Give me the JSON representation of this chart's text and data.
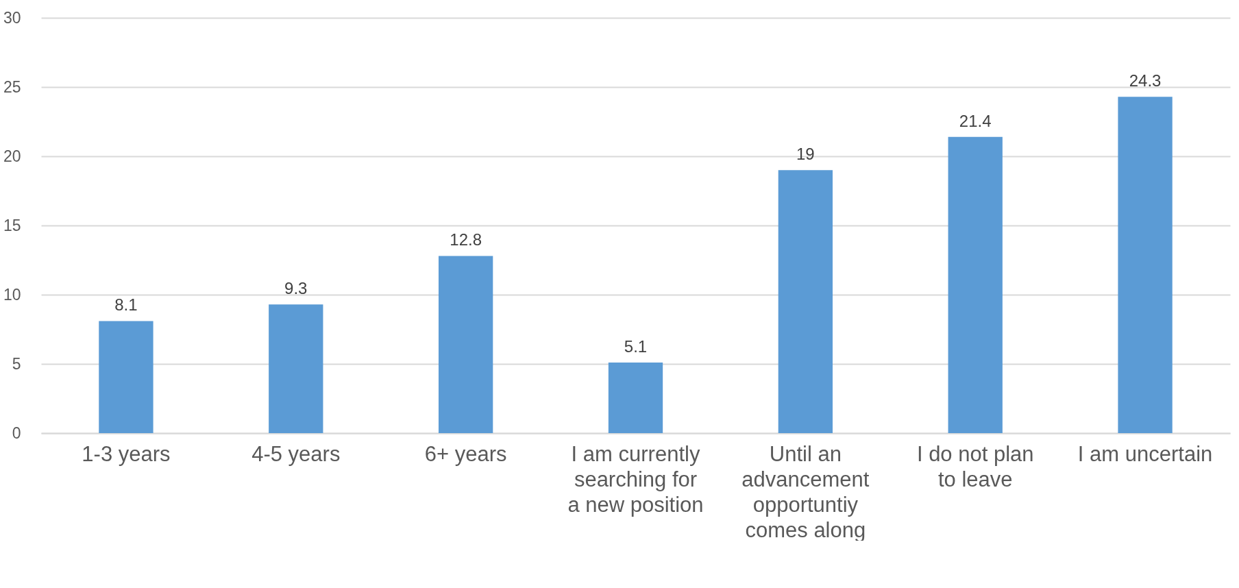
{
  "chart_data": {
    "type": "bar",
    "categories": [
      "1-3 years",
      "4-5 years",
      "6+ years",
      "I am currently searching for a new position",
      "Until an advancement opportuntiy comes along",
      "I do not plan to leave",
      "I am uncertain"
    ],
    "values": [
      8.1,
      9.3,
      12.8,
      5.1,
      19,
      21.4,
      24.3
    ],
    "color": "#5b9bd5",
    "ylim": [
      0,
      30
    ],
    "yticks": [
      0,
      5,
      10,
      15,
      20,
      25,
      30
    ],
    "grid": "y",
    "data_labels": true
  }
}
